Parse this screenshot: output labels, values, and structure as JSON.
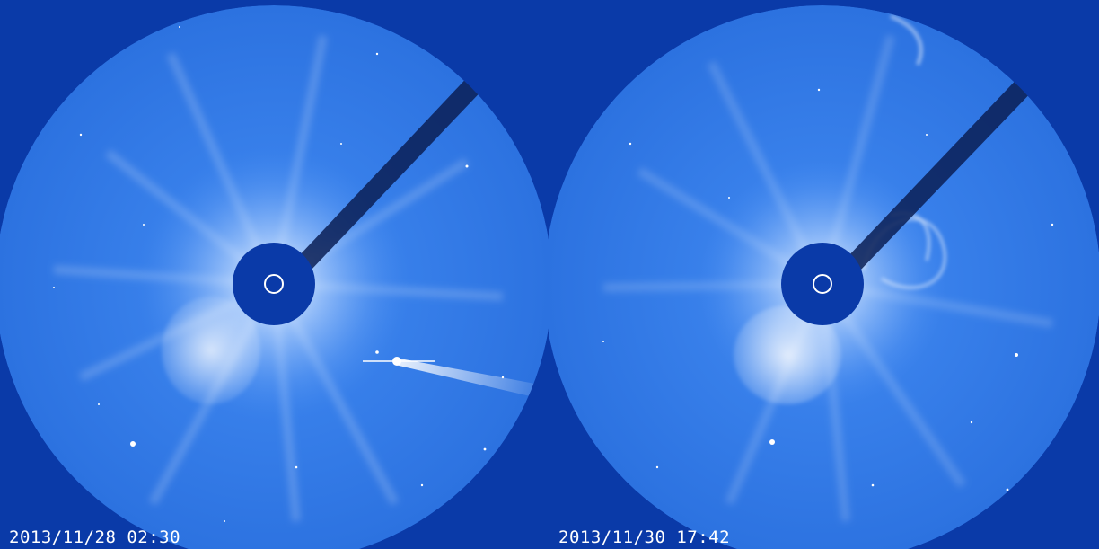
{
  "frames": [
    {
      "timestamp": "2013/11/28 02:30",
      "features": {
        "comet": true,
        "cme_top_right_arc": false,
        "bright_ejecta": "lower-left"
      }
    },
    {
      "timestamp": "2013/11/30 17:42",
      "features": {
        "comet": false,
        "cme_top_right_arc": true,
        "bright_ejecta": "lower-left"
      }
    }
  ],
  "colors": {
    "background": "#0a3aa8",
    "field": "#2f78e6",
    "occulter": "#0a3aa8",
    "sun_ring": "#ffffff",
    "corona": "#dfeeff",
    "pylon": "#0a1f55"
  }
}
